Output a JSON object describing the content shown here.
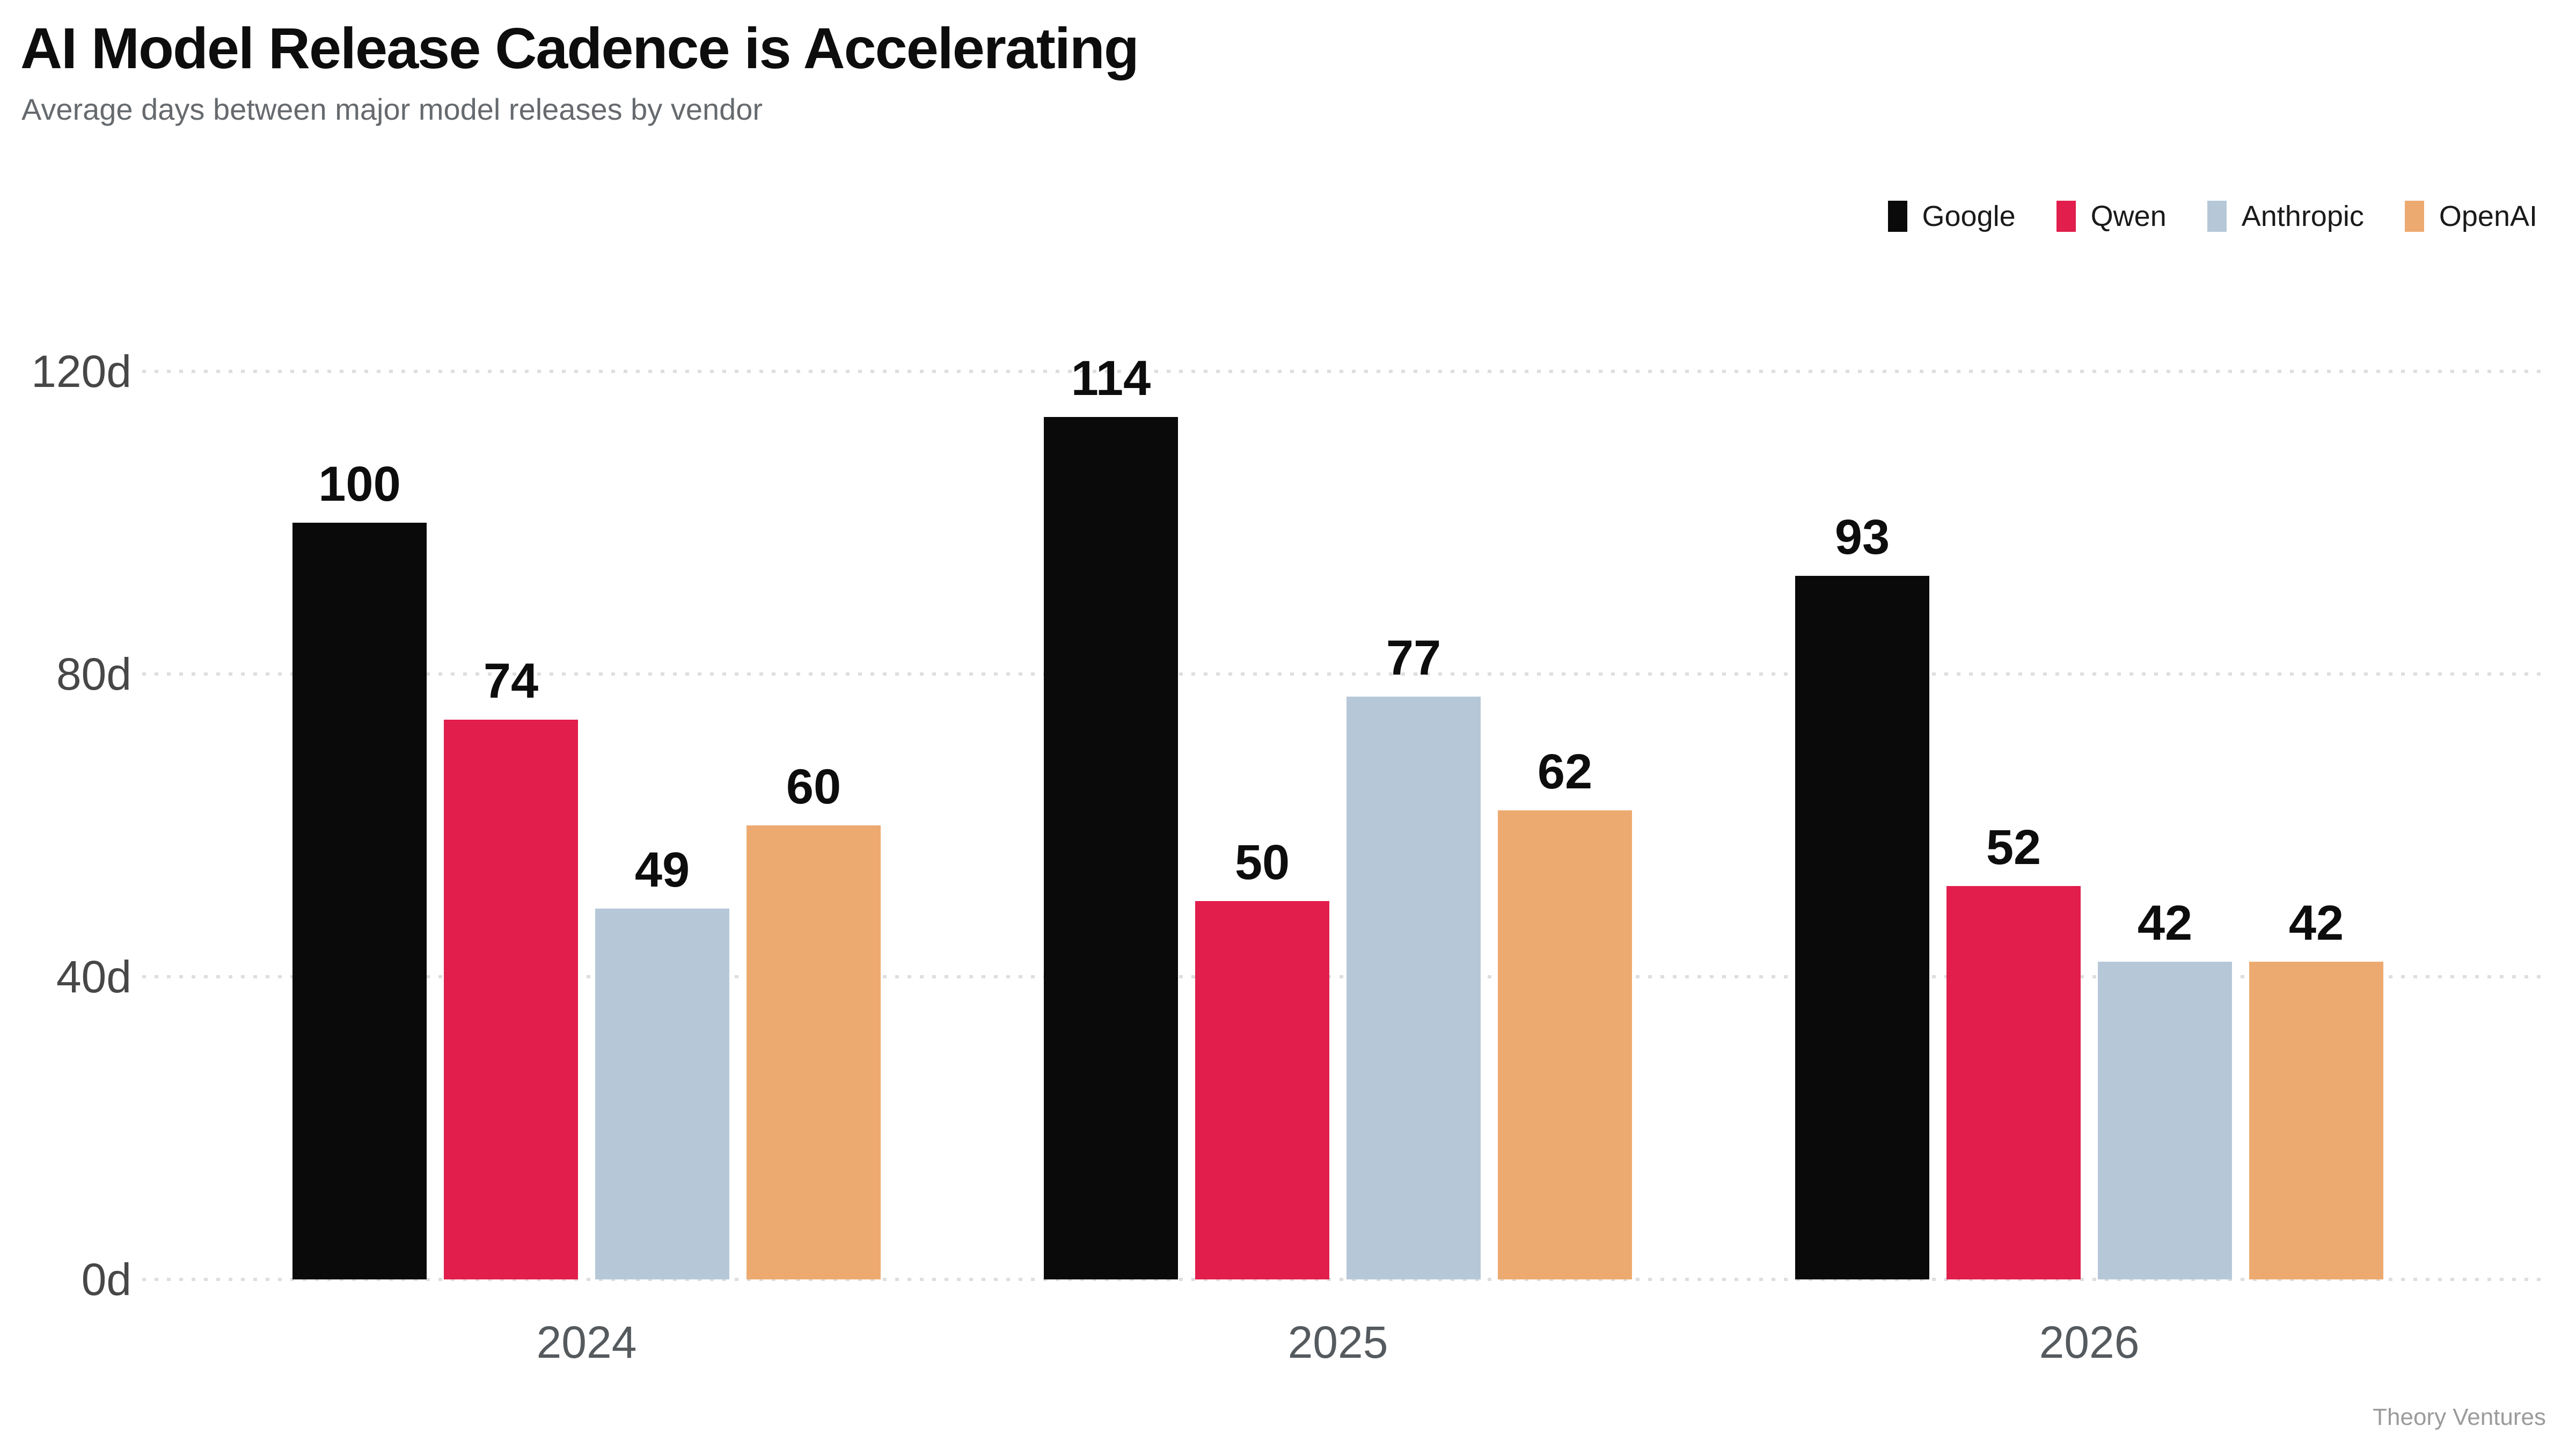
{
  "header": {
    "title": "AI Model Release Cadence is Accelerating",
    "subtitle": "Average days between major model releases by vendor"
  },
  "footer": {
    "credit": "Theory Ventures"
  },
  "chart_data": {
    "type": "bar",
    "title": "AI Model Release Cadence is Accelerating",
    "subtitle": "Average days between major model releases by vendor",
    "categories": [
      "2024",
      "2025",
      "2026"
    ],
    "series": [
      {
        "name": "Google",
        "color": "#0a0a0a",
        "values": [
          100,
          114,
          93
        ]
      },
      {
        "name": "Qwen",
        "color": "#e11e4c",
        "values": [
          74,
          50,
          52
        ]
      },
      {
        "name": "Anthropic",
        "color": "#b6c8d8",
        "values": [
          49,
          77,
          42
        ]
      },
      {
        "name": "OpenAI",
        "color": "#edaa70",
        "values": [
          60,
          62,
          42
        ]
      }
    ],
    "unit": "days",
    "ylim": [
      0,
      120
    ],
    "yticks": [
      0,
      40,
      80,
      120
    ],
    "ytick_labels": [
      "0d",
      "40d",
      "80d",
      "120d"
    ],
    "xlabel": "",
    "ylabel": "",
    "grid": "horizontal-dotted",
    "legend_position": "top-right",
    "value_labels": true
  }
}
